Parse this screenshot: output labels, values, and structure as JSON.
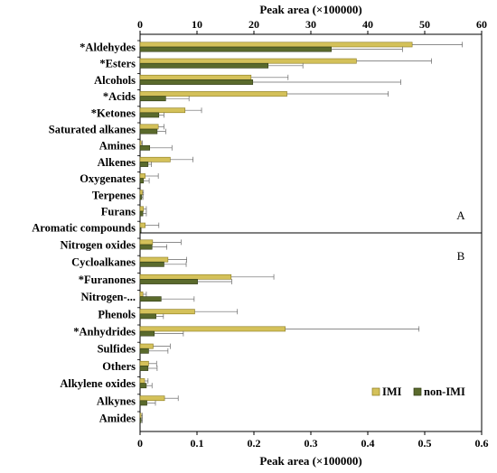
{
  "colors": {
    "imi": "#d4c15a",
    "non_imi": "#5a6a2c",
    "imi_edge": "#8a7a1e",
    "non_imi_edge": "#2f3a14"
  },
  "legend": {
    "imi": "IMI",
    "non_imi": "non-IMI"
  },
  "chart_data": [
    {
      "type": "bar",
      "orientation": "horizontal",
      "panel_label": "A",
      "axis_title": "Peak area (×100000)",
      "axis_position": "top",
      "xlim": [
        0,
        60
      ],
      "ticks": [
        0,
        10,
        20,
        30,
        40,
        50,
        60
      ],
      "categories": [
        "*Aldehydes",
        "*Esters",
        "Alcohols",
        "*Acids",
        "*Ketones",
        "Saturated alkanes",
        "Amines",
        "Alkenes",
        "Oxygenates",
        "Terpenes",
        "Furans",
        "Aromatic compounds"
      ],
      "series": [
        {
          "name": "IMI",
          "values": [
            47.8,
            38.0,
            19.5,
            25.8,
            7.9,
            3.2,
            0.2,
            5.3,
            0.9,
            0.4,
            0.6,
            0.9
          ],
          "errors": [
            8.8,
            13.2,
            6.5,
            17.8,
            2.9,
            1.0,
            0.2,
            4.0,
            2.3,
            0.2,
            0.5,
            2.4
          ]
        },
        {
          "name": "non-IMI",
          "values": [
            33.6,
            22.5,
            19.8,
            4.5,
            3.3,
            3.0,
            1.7,
            1.4,
            0.6,
            0.3,
            0.5,
            0.1
          ],
          "errors": [
            12.5,
            6.1,
            26.0,
            4.1,
            0.9,
            1.5,
            3.9,
            0.6,
            1.0,
            0.2,
            0.6,
            0.1
          ]
        }
      ],
      "grid": false,
      "legend_placement": "bottom-right"
    },
    {
      "type": "bar",
      "orientation": "horizontal",
      "panel_label": "B",
      "axis_title": "Peak area (×100000)",
      "axis_position": "bottom",
      "xlim": [
        0,
        0.6
      ],
      "ticks": [
        0,
        0.1,
        0.2,
        0.3,
        0.4,
        0.5,
        0.6
      ],
      "tick_labels": [
        "0",
        "0.1",
        "0.2",
        "0.3",
        "0.4",
        "0.5",
        "0.6"
      ],
      "categories": [
        "Nitrogen oxides",
        "Cycloalkanes",
        "*Furanones",
        "Nitrogen-...",
        "Phenols",
        "*Anhydrides",
        "Sulfides",
        "Others",
        "Alkylene oxides",
        "Alkynes",
        "Amides"
      ],
      "series": [
        {
          "name": "IMI",
          "values": [
            0.022,
            0.049,
            0.16,
            0.005,
            0.096,
            0.255,
            0.023,
            0.015,
            0.008,
            0.043,
            0.002
          ],
          "errors": [
            0.05,
            0.033,
            0.075,
            0.006,
            0.075,
            0.235,
            0.03,
            0.014,
            0.006,
            0.024,
            0.002
          ]
        },
        {
          "name": "non-IMI",
          "values": [
            0.021,
            0.042,
            0.101,
            0.037,
            0.028,
            0.025,
            0.015,
            0.014,
            0.011,
            0.012,
            0.002
          ],
          "errors": [
            0.026,
            0.039,
            0.06,
            0.058,
            0.013,
            0.051,
            0.034,
            0.016,
            0.01,
            0.015,
            0.002
          ]
        }
      ],
      "grid": false
    }
  ]
}
